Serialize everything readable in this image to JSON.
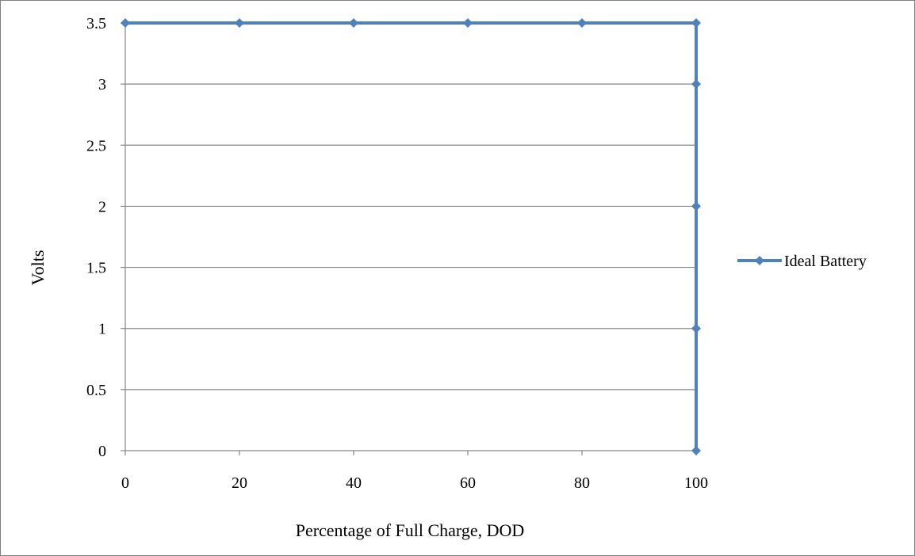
{
  "chart_data": {
    "type": "line",
    "title": "",
    "xlabel": "Percentage of Full Charge, DOD",
    "ylabel": "Volts",
    "xlim": [
      0,
      100
    ],
    "ylim": [
      0,
      3.5
    ],
    "x_ticks": [
      0,
      20,
      40,
      60,
      80,
      100
    ],
    "y_ticks": [
      0,
      0.5,
      1,
      1.5,
      2,
      2.5,
      3,
      3.5
    ],
    "grid": "horizontal",
    "legend": "right",
    "series": [
      {
        "name": "Ideal Battery",
        "color": "#4F81BD",
        "marker": "diamond",
        "points": [
          {
            "x": 0,
            "y": 3.5
          },
          {
            "x": 20,
            "y": 3.5
          },
          {
            "x": 40,
            "y": 3.5
          },
          {
            "x": 60,
            "y": 3.5
          },
          {
            "x": 80,
            "y": 3.5
          },
          {
            "x": 100,
            "y": 3.5
          },
          {
            "x": 100,
            "y": 3
          },
          {
            "x": 100,
            "y": 2
          },
          {
            "x": 100,
            "y": 1
          },
          {
            "x": 100,
            "y": 0
          }
        ]
      }
    ]
  }
}
